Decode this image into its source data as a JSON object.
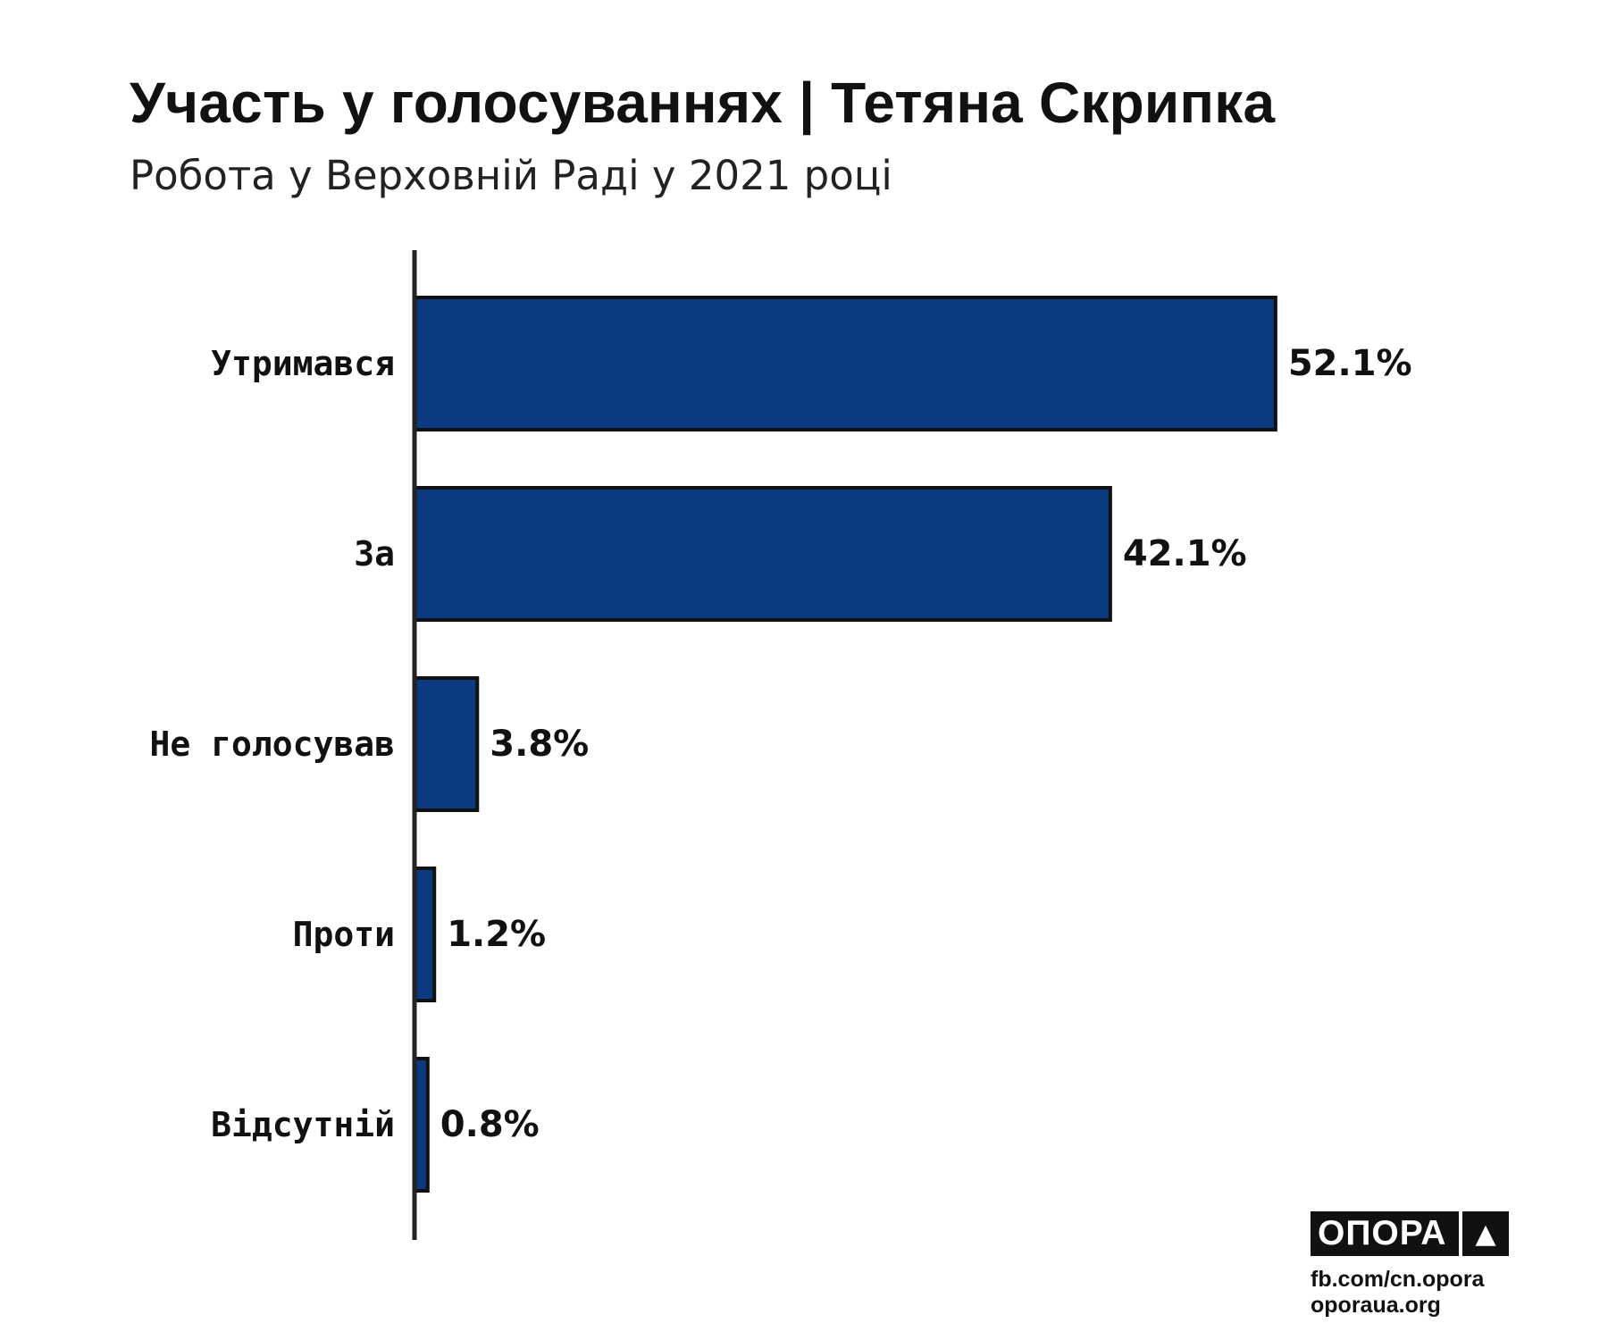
{
  "header": {
    "title": "Участь у голосуваннях | Тетяна Скрипка",
    "subtitle": "Робота у Верховній Раді у 2021 році"
  },
  "chart_data": {
    "type": "bar",
    "orientation": "horizontal",
    "categories": [
      "Утримався",
      "За",
      "Не голосував",
      "Проти",
      "Відсутній"
    ],
    "values": [
      52.1,
      42.1,
      3.8,
      1.2,
      0.8
    ],
    "value_labels": [
      "52.1%",
      "42.1%",
      "3.8%",
      "1.2%",
      "0.8%"
    ],
    "unit": "%",
    "bar_color": "#0c3a80",
    "bar_outline_color": "#111111",
    "grid": false,
    "legend": "none"
  },
  "footer": {
    "logo_text": "ОПОРА",
    "logo_icon": "triangle-up-icon",
    "links": [
      "fb.com/cn.opora",
      "oporaua.org"
    ]
  }
}
